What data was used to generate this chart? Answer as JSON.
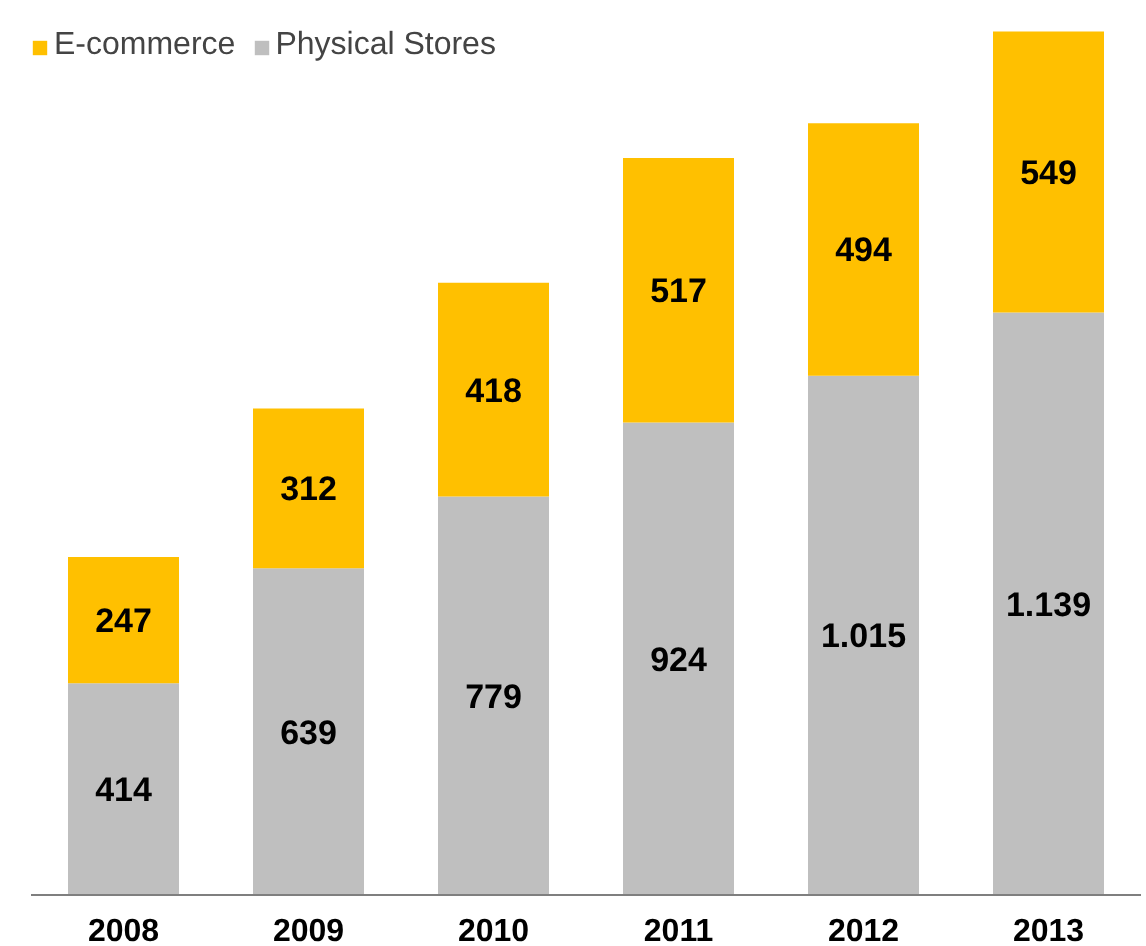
{
  "chart_data": {
    "type": "bar",
    "stacked": true,
    "legend": "top left",
    "categories": [
      "2008",
      "2009",
      "2010",
      "2011",
      "2012",
      "2013"
    ],
    "series": [
      {
        "name": "Physical Stores",
        "color": "#bfbfbf",
        "values": [
          414,
          639,
          779,
          924,
          1015,
          1139
        ],
        "value_labels": [
          "414",
          "639",
          "779",
          "924",
          "1.015",
          "1.139"
        ]
      },
      {
        "name": "E-commerce",
        "color": "#ffc000",
        "values": [
          247,
          312,
          418,
          517,
          494,
          549
        ],
        "value_labels": [
          "247",
          "312",
          "418",
          "517",
          "494",
          "549"
        ]
      }
    ]
  }
}
